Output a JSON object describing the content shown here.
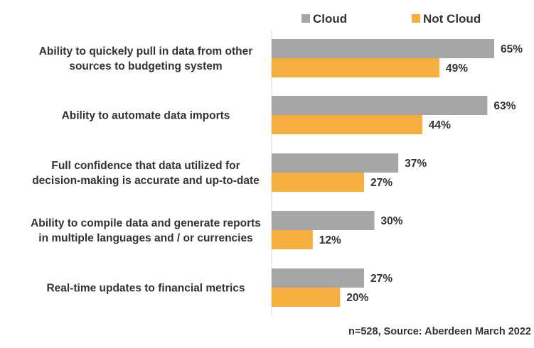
{
  "chart_data": {
    "type": "bar",
    "orientation": "horizontal",
    "categories": [
      [
        "Ability to quickely pull in data from other",
        "sources to budgeting system"
      ],
      [
        "Ability to automate data imports"
      ],
      [
        "Full confidence that data utilized for",
        "decision-making is accurate and up-to-date"
      ],
      [
        "Ability to compile data and generate reports",
        "in multiple languages and / or currencies"
      ],
      [
        "Real-time updates to financial metrics"
      ]
    ],
    "series": [
      {
        "name": "Cloud",
        "values": [
          65,
          63,
          37,
          30,
          27
        ],
        "labels": [
          "65%",
          "63%",
          "37%",
          "30%",
          "27%"
        ],
        "color": "#a6a6a6"
      },
      {
        "name": "Not Cloud",
        "values": [
          49,
          44,
          27,
          12,
          20
        ],
        "labels": [
          "49%",
          "44%",
          "27%",
          "12%",
          "20%"
        ],
        "color": "#f5ae3f"
      }
    ],
    "xlim": [
      0,
      100
    ],
    "grid": false,
    "legend": "top"
  },
  "footnote": "n=528, Source: Aberdeen March 2022"
}
